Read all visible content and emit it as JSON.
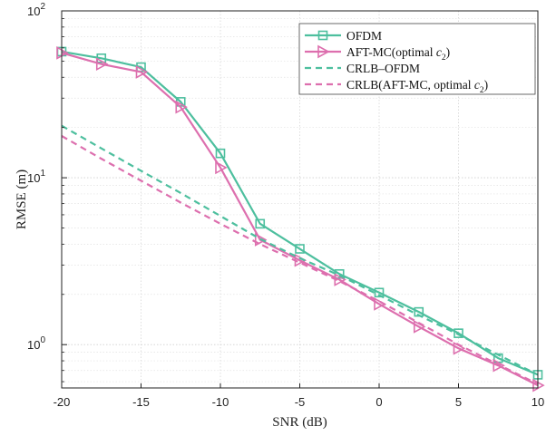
{
  "chart_data": {
    "type": "line",
    "xlabel": "SNR (dB)",
    "ylabel": "RMSE (m)",
    "xlim": [
      -20,
      10
    ],
    "ylim": [
      0.55,
      100
    ],
    "yscale": "log",
    "grid": true,
    "legend_position": "top-right",
    "x_ticks": [
      "-20",
      "-15",
      "-10",
      "-5",
      "0",
      "5",
      "10"
    ],
    "y_ticks": [
      {
        "value": 100,
        "base": "10",
        "exp": "2"
      },
      {
        "value": 10,
        "base": "10",
        "exp": "1"
      },
      {
        "value": 1,
        "base": "10",
        "exp": "0"
      }
    ],
    "series": [
      {
        "name": "OFDM",
        "name_parts": [
          "OFDM"
        ],
        "color": "#4dbf9e",
        "dashed": false,
        "marker": "square",
        "x": [
          -20,
          -17.5,
          -15,
          -12.5,
          -10,
          -7.5,
          -5,
          -2.5,
          0,
          2.5,
          5,
          7.5,
          10
        ],
        "y": [
          57,
          52,
          46,
          28.5,
          14,
          5.3,
          3.75,
          2.65,
          2.05,
          1.57,
          1.17,
          0.83,
          0.66
        ]
      },
      {
        "name": "AFT-MC(optimal c2)",
        "name_parts": [
          "AFT-MC(optimal ",
          "c",
          "2",
          ")"
        ],
        "color": "#dd6fae",
        "dashed": false,
        "marker": "triangle-right",
        "x": [
          -20,
          -17.5,
          -15,
          -12.5,
          -10,
          -7.5,
          -5,
          -2.5,
          0,
          2.5,
          5,
          7.5,
          10
        ],
        "y": [
          56,
          48,
          43,
          26.5,
          11.5,
          4.25,
          3.2,
          2.45,
          1.75,
          1.28,
          0.95,
          0.75,
          0.57
        ]
      },
      {
        "name": "CRLB–OFDM",
        "name_parts": [
          "CRLB–OFDM"
        ],
        "color": "#4dbf9e",
        "dashed": true,
        "marker": "none",
        "x": [
          -20,
          -17.5,
          -15,
          -12.5,
          -10,
          -7.5,
          -5,
          -2.5,
          0,
          2.5,
          5,
          7.5,
          10
        ],
        "y": [
          20.5,
          15.0,
          11.0,
          8.1,
          5.9,
          4.3,
          3.3,
          2.6,
          1.98,
          1.5,
          1.15,
          0.87,
          0.66
        ]
      },
      {
        "name": "CRLB(AFT-MC, optimal c2)",
        "name_parts": [
          "CRLB(AFT-MC, optimal ",
          "c",
          "2",
          ")"
        ],
        "color": "#dd6fae",
        "dashed": true,
        "marker": "none",
        "x": [
          -20,
          -17.5,
          -15,
          -12.5,
          -10,
          -7.5,
          -5,
          -2.5,
          0,
          2.5,
          5,
          7.5,
          10
        ],
        "y": [
          17.8,
          13.0,
          9.6,
          7.1,
          5.3,
          4.0,
          3.1,
          2.4,
          1.82,
          1.35,
          1.0,
          0.76,
          0.58
        ]
      }
    ]
  }
}
